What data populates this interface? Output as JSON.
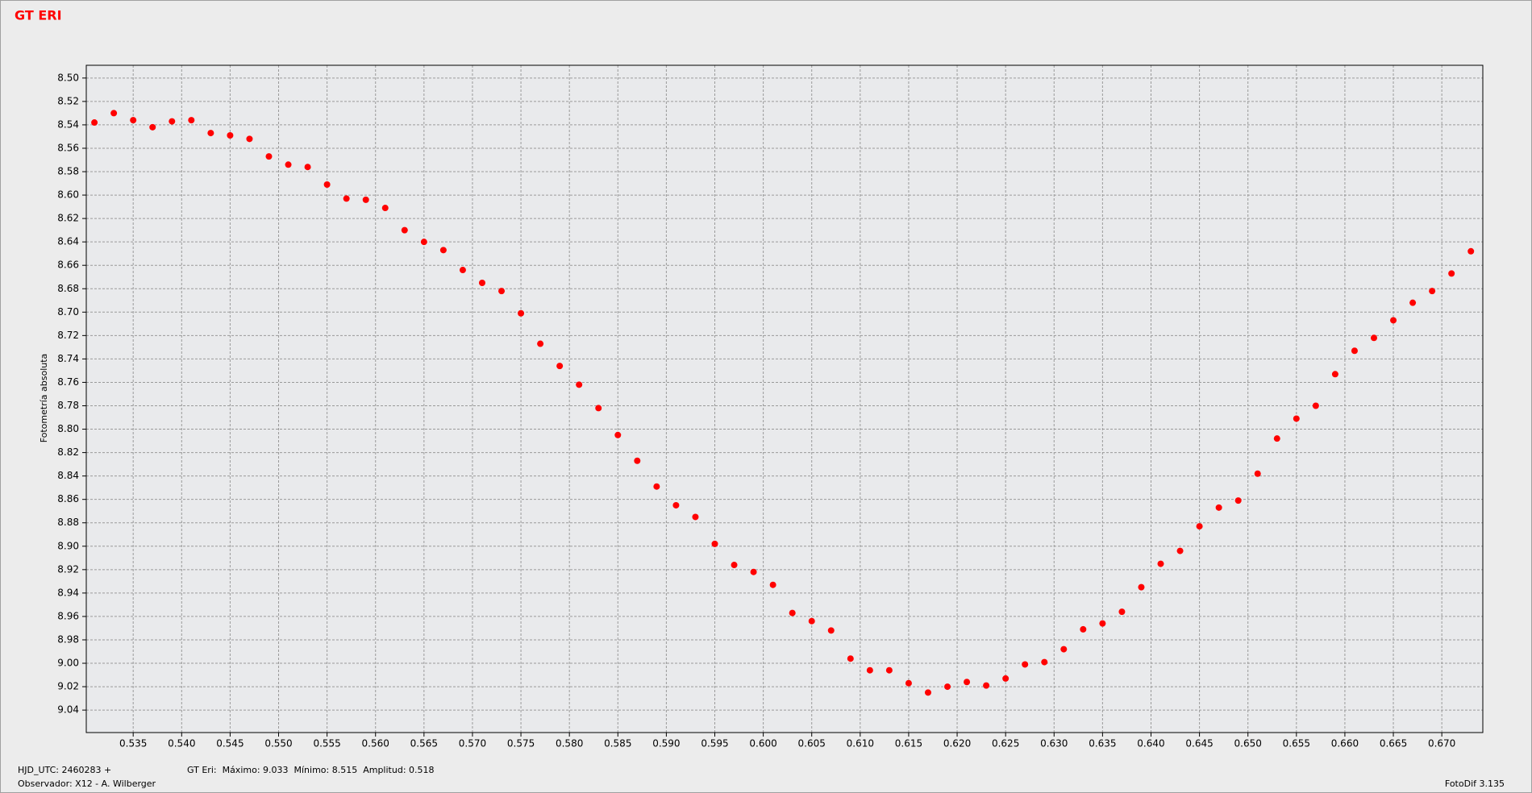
{
  "chart_data": {
    "type": "scatter",
    "title": "GT ERI",
    "y_label": "Fotometría absoluta",
    "footer": {
      "hjd": "HJD_UTC: 2460283 +",
      "observer": "Observador: X12 - A. Wilberger",
      "stats": "GT Eri:  Máximo: 9.033  Mínimo: 8.515  Amplitud: 0.518",
      "software": "FotoDif 3.135"
    },
    "color": "#ff0000",
    "grid": true,
    "y_inverted": true,
    "xlim": [
      0.53016,
      0.67423
    ],
    "ylim": [
      8.4891,
      9.0592
    ],
    "xticks": [
      0.535,
      {
        "value": 0.54,
        "label": "0.540"
      },
      0.545,
      {
        "value": 0.55,
        "label": "0.550"
      },
      0.555,
      {
        "value": 0.56,
        "label": "0.560"
      },
      0.565,
      {
        "value": 0.57,
        "label": "0.570"
      },
      0.575,
      {
        "value": 0.58,
        "label": "0.580"
      },
      0.585,
      {
        "value": 0.59,
        "label": "0.590"
      },
      0.595,
      {
        "value": 0.6,
        "label": "0.600"
      },
      0.605,
      {
        "value": 0.61,
        "label": "0.610"
      },
      0.615,
      {
        "value": 0.62,
        "label": "0.620"
      },
      0.625,
      {
        "value": 0.63,
        "label": "0.630"
      },
      0.635,
      {
        "value": 0.64,
        "label": "0.640"
      },
      0.645,
      {
        "value": 0.65,
        "label": "0.650"
      },
      0.655,
      {
        "value": 0.66,
        "label": "0.660"
      },
      0.665,
      {
        "value": 0.67,
        "label": "0.670"
      }
    ],
    "yticks": [
      {
        "value": 8.5,
        "label": "8.50"
      },
      8.52,
      8.54,
      8.56,
      8.58,
      {
        "value": 8.6,
        "label": "8.60"
      },
      8.62,
      8.64,
      8.66,
      8.68,
      {
        "value": 8.7,
        "label": "8.70"
      },
      8.72,
      8.74,
      8.76,
      8.78,
      {
        "value": 8.8,
        "label": "8.80"
      },
      8.82,
      8.84,
      8.86,
      8.88,
      {
        "value": 8.9,
        "label": "8.90"
      },
      8.92,
      8.94,
      8.96,
      8.98,
      {
        "value": 9.0,
        "label": "9.00"
      },
      9.02,
      9.04
    ],
    "x": [
      0.531,
      0.533,
      0.535,
      0.537,
      0.539,
      0.541,
      0.543,
      0.545,
      0.547,
      0.549,
      0.551,
      0.553,
      0.555,
      0.557,
      0.559,
      0.561,
      0.563,
      0.565,
      0.567,
      0.569,
      0.571,
      0.573,
      0.575,
      0.577,
      0.579,
      0.581,
      0.583,
      0.585,
      0.587,
      0.589,
      0.591,
      0.593,
      0.595,
      0.597,
      0.599,
      0.601,
      0.603,
      0.605,
      0.607,
      0.609,
      0.611,
      0.613,
      0.615,
      0.617,
      0.619,
      0.621,
      0.623,
      0.625,
      0.627,
      0.629,
      0.631,
      0.633,
      0.635,
      0.637,
      0.639,
      0.641,
      0.643,
      0.645,
      0.647,
      0.649,
      0.651,
      0.653,
      0.655,
      0.657,
      0.659,
      0.661,
      0.663,
      0.665,
      0.667,
      0.669,
      0.671,
      0.673
    ],
    "values": [
      8.538,
      8.53,
      8.536,
      8.542,
      8.537,
      8.536,
      8.547,
      8.549,
      8.552,
      8.567,
      8.574,
      8.576,
      8.591,
      8.603,
      8.604,
      8.611,
      8.63,
      8.64,
      8.647,
      8.664,
      8.675,
      8.682,
      8.701,
      8.727,
      8.746,
      8.762,
      8.782,
      8.805,
      8.827,
      8.849,
      8.865,
      8.875,
      8.898,
      8.916,
      8.922,
      8.933,
      8.957,
      8.964,
      8.972,
      8.996,
      9.006,
      9.006,
      9.017,
      9.025,
      9.02,
      9.016,
      9.019,
      9.013,
      9.001,
      8.999,
      8.988,
      8.971,
      8.966,
      8.956,
      8.935,
      8.915,
      8.904,
      8.883,
      8.867,
      8.861,
      8.838,
      8.808,
      8.791,
      8.78,
      8.753,
      8.733,
      8.722,
      8.707,
      8.692,
      8.682,
      8.667,
      8.648
    ]
  }
}
